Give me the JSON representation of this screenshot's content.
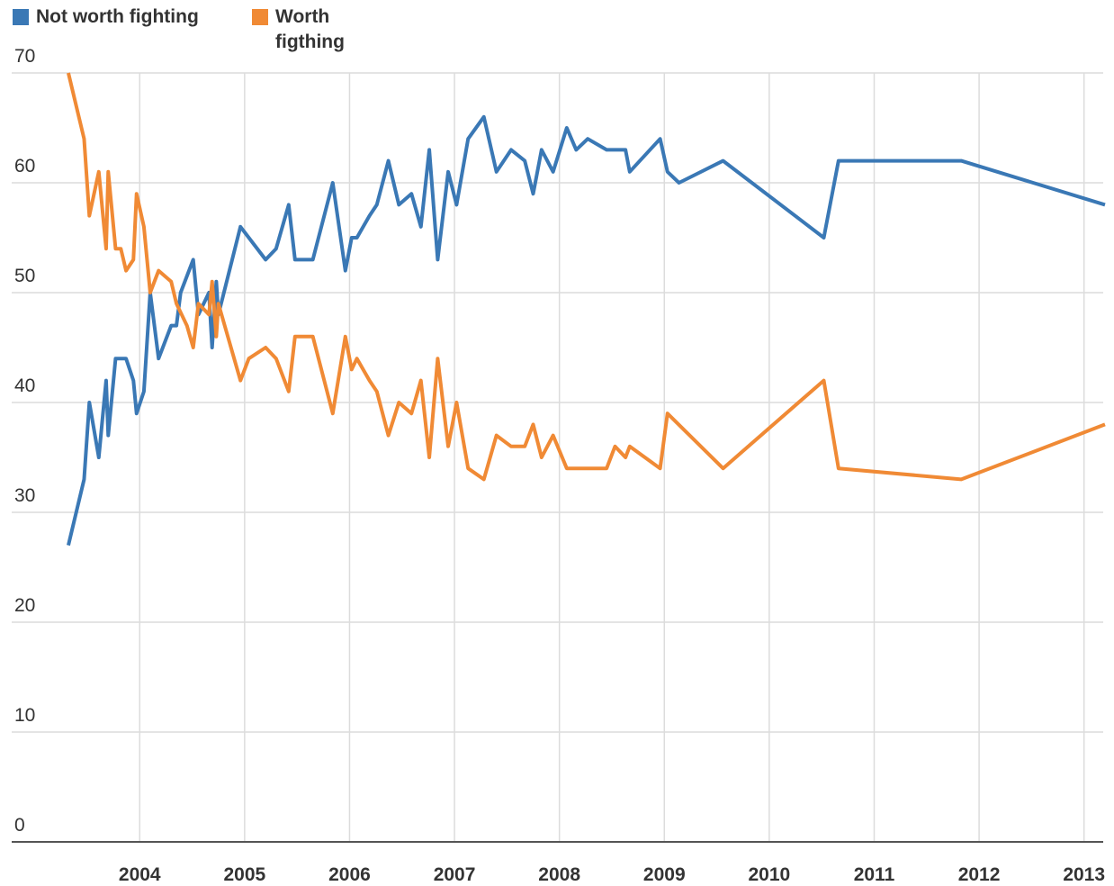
{
  "chart_data": {
    "type": "line",
    "xlim": [
      2002.78,
      2013.2
    ],
    "xticks": [
      2004,
      2005,
      2006,
      2007,
      2008,
      2009,
      2010,
      2011,
      2012,
      2013
    ],
    "ylim": [
      0,
      70
    ],
    "yticks": [
      0,
      10,
      20,
      30,
      40,
      50,
      60,
      70
    ],
    "grid": true,
    "legend": "top-left",
    "series": [
      {
        "name": "Not worth fighting",
        "color": "#3a78b5",
        "x": [
          2003.32,
          2003.47,
          2003.52,
          2003.61,
          2003.68,
          2003.7,
          2003.77,
          2003.87,
          2003.94,
          2003.97,
          2004.04,
          2004.1,
          2004.18,
          2004.3,
          2004.35,
          2004.39,
          2004.51,
          2004.56,
          2004.66,
          2004.69,
          2004.73,
          2004.75,
          2004.96,
          2005.2,
          2005.3,
          2005.42,
          2005.48,
          2005.65,
          2005.84,
          2005.96,
          2006.02,
          2006.07,
          2006.19,
          2006.26,
          2006.37,
          2006.47,
          2006.59,
          2006.68,
          2006.76,
          2006.84,
          2006.94,
          2007.02,
          2007.13,
          2007.28,
          2007.4,
          2007.54,
          2007.67,
          2007.75,
          2007.83,
          2007.94,
          2008.07,
          2008.16,
          2008.27,
          2008.45,
          2008.63,
          2008.67,
          2008.96,
          2009.03,
          2009.14,
          2009.56,
          2010.52,
          2010.66,
          2011.83,
          2013.2
        ],
        "values": [
          27,
          33,
          40,
          35,
          42,
          37,
          44,
          44,
          42,
          39,
          41,
          50,
          44,
          47,
          47,
          50,
          53,
          48,
          50,
          45,
          51,
          48,
          56,
          53,
          54,
          58,
          53,
          53,
          60,
          52,
          55,
          55,
          57,
          58,
          62,
          58,
          59,
          56,
          63,
          53,
          61,
          58,
          64,
          66,
          61,
          63,
          62,
          59,
          63,
          61,
          65,
          63,
          64,
          63,
          63,
          61,
          64,
          61,
          60,
          62,
          55,
          62,
          62,
          58
        ]
      },
      {
        "name": "Worth figthing",
        "color": "#f08a35",
        "x": [
          2003.32,
          2003.47,
          2003.52,
          2003.61,
          2003.68,
          2003.7,
          2003.77,
          2003.82,
          2003.87,
          2003.94,
          2003.97,
          2004.04,
          2004.1,
          2004.18,
          2004.3,
          2004.35,
          2004.45,
          2004.51,
          2004.56,
          2004.66,
          2004.69,
          2004.73,
          2004.75,
          2004.96,
          2005.04,
          2005.2,
          2005.3,
          2005.42,
          2005.48,
          2005.65,
          2005.84,
          2005.96,
          2006.02,
          2006.07,
          2006.19,
          2006.26,
          2006.37,
          2006.47,
          2006.59,
          2006.68,
          2006.76,
          2006.84,
          2006.94,
          2007.02,
          2007.13,
          2007.28,
          2007.4,
          2007.54,
          2007.67,
          2007.75,
          2007.83,
          2007.94,
          2008.07,
          2008.45,
          2008.53,
          2008.63,
          2008.67,
          2008.96,
          2009.03,
          2009.56,
          2010.52,
          2010.66,
          2011.83,
          2013.2
        ],
        "values": [
          70,
          64,
          57,
          61,
          54,
          61,
          54,
          54,
          52,
          53,
          59,
          56,
          50,
          52,
          51,
          49,
          47,
          45,
          49,
          48,
          51,
          46,
          49,
          42,
          44,
          45,
          44,
          41,
          46,
          46,
          39,
          46,
          43,
          44,
          42,
          41,
          37,
          40,
          39,
          42,
          35,
          44,
          36,
          40,
          34,
          33,
          37,
          36,
          36,
          38,
          35,
          37,
          34,
          34,
          36,
          35,
          36,
          34,
          39,
          34,
          42,
          34,
          33,
          38
        ]
      }
    ]
  }
}
